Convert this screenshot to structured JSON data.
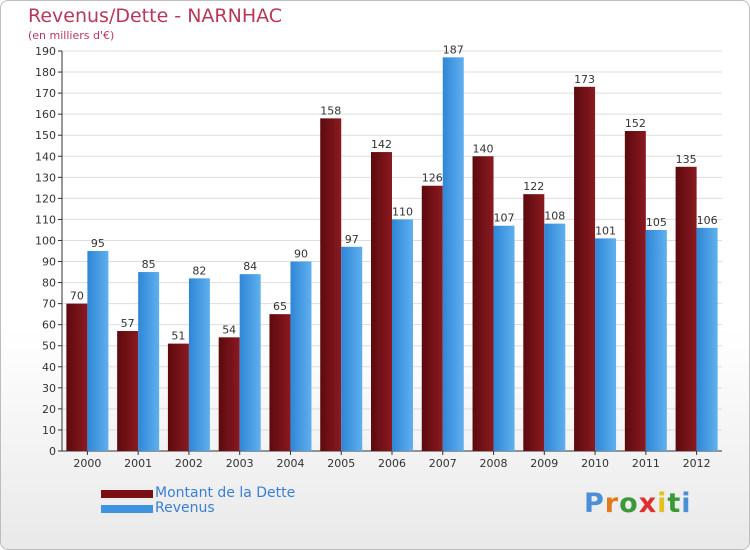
{
  "chart_data": {
    "type": "bar",
    "title": "Revenus/Dette - NARNHAC",
    "subtitle": "(en milliers d'€)",
    "categories": [
      "2000",
      "2001",
      "2002",
      "2003",
      "2004",
      "2005",
      "2006",
      "2007",
      "2008",
      "2009",
      "2010",
      "2011",
      "2012"
    ],
    "series": [
      {
        "name": "Montant de la Dette",
        "color": "#7a0f14",
        "values": [
          70,
          57,
          51,
          54,
          65,
          158,
          142,
          126,
          140,
          122,
          173,
          152,
          135
        ]
      },
      {
        "name": "Revenus",
        "color": "#3d93dd",
        "values": [
          95,
          85,
          82,
          84,
          90,
          97,
          110,
          187,
          107,
          108,
          101,
          105,
          106
        ]
      }
    ],
    "ylim": [
      0,
      190
    ],
    "ytick_step": 10,
    "grid": true,
    "legend_position": "bottom-left"
  },
  "logo": {
    "text": "Proxiti",
    "letter_colors": [
      "#4a8fd8",
      "#e07a1c",
      "#3a9a3a",
      "#e22d2d",
      "#e2c21c",
      "#3a9a3a",
      "#4a8fd8"
    ]
  }
}
